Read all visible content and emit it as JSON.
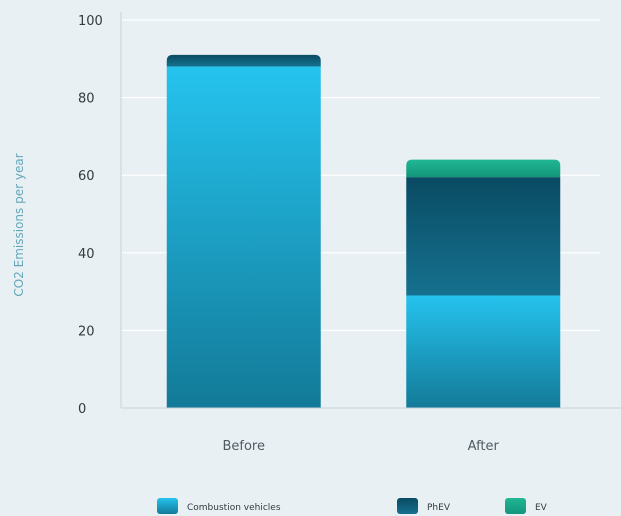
{
  "chart_data": {
    "type": "bar",
    "stacked": true,
    "categories": [
      "Before",
      "After"
    ],
    "series": [
      {
        "name": "Combustion vehicles",
        "values": [
          88,
          29
        ],
        "color": "#1ea6cf"
      },
      {
        "name": "PhEV",
        "values": [
          3,
          30.5
        ],
        "color": "#0b5670"
      },
      {
        "name": "EV",
        "values": [
          0,
          4.5
        ],
        "color": "#1aa588"
      }
    ],
    "xlabel": "",
    "ylabel": "CO2 Emissions per year",
    "ylim": [
      0,
      100
    ],
    "yticks": [
      0,
      20,
      40,
      60,
      80,
      100
    ],
    "grid": true,
    "legend_position": "bottom"
  }
}
